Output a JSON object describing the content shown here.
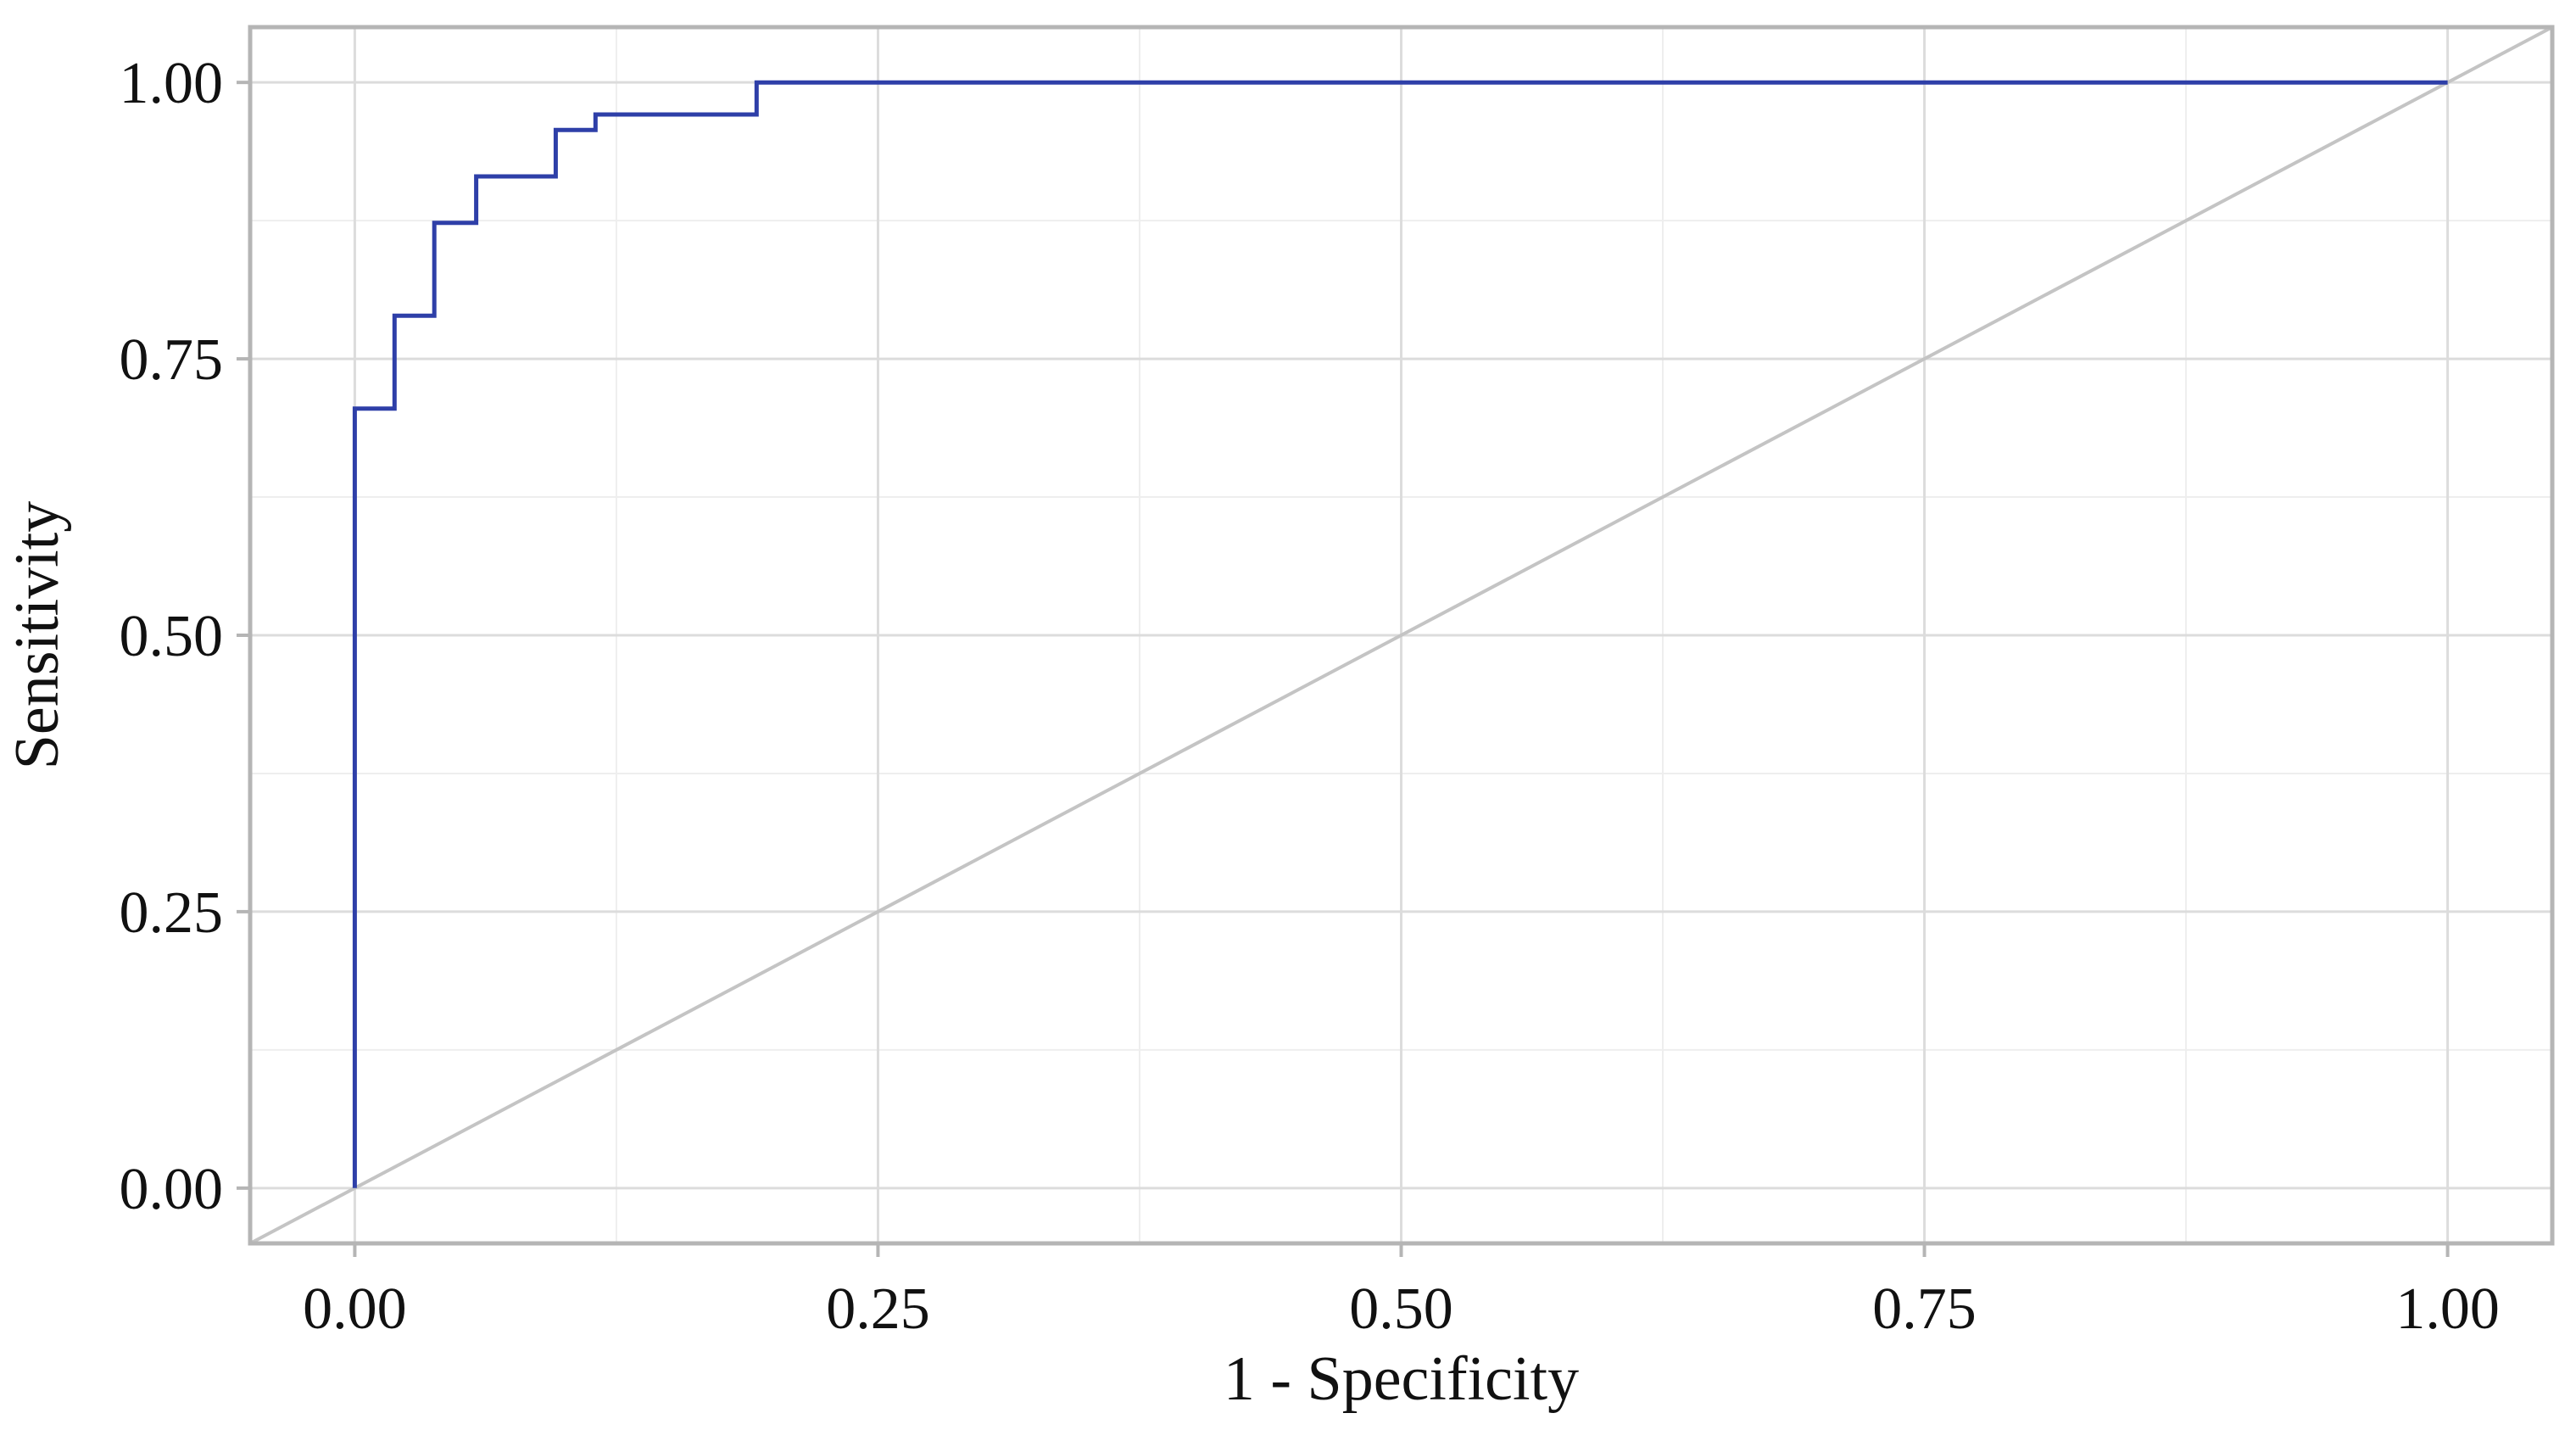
{
  "chart_data": {
    "type": "line",
    "title": "",
    "xlabel": "1 - Specificity",
    "ylabel": "Sensitivity",
    "xlim": [
      -0.05,
      1.05
    ],
    "ylim": [
      -0.05,
      1.05
    ],
    "x_ticks": [
      0.0,
      0.25,
      0.5,
      0.75,
      1.0
    ],
    "x_tick_labels": [
      "0.00",
      "0.25",
      "0.50",
      "0.75",
      "1.00"
    ],
    "y_ticks": [
      0.0,
      0.25,
      0.5,
      0.75,
      1.0
    ],
    "y_tick_labels": [
      "0.00",
      "0.25",
      "0.50",
      "0.75",
      "1.00"
    ],
    "grid": true,
    "series": [
      {
        "step": true,
        "color": "#2e3fa8",
        "x": [
          0.0,
          0.0,
          0.019,
          0.019,
          0.038,
          0.038,
          0.058,
          0.058,
          0.096,
          0.096,
          0.115,
          0.115,
          0.192,
          0.192,
          1.0
        ],
        "y": [
          0.0,
          0.705,
          0.705,
          0.789,
          0.789,
          0.873,
          0.873,
          0.915,
          0.915,
          0.957,
          0.957,
          0.971,
          0.971,
          1.0,
          1.0
        ]
      },
      {
        "color": "#c4c4c4",
        "x": [
          -0.05,
          1.05
        ],
        "y": [
          -0.05,
          1.05
        ]
      }
    ]
  }
}
